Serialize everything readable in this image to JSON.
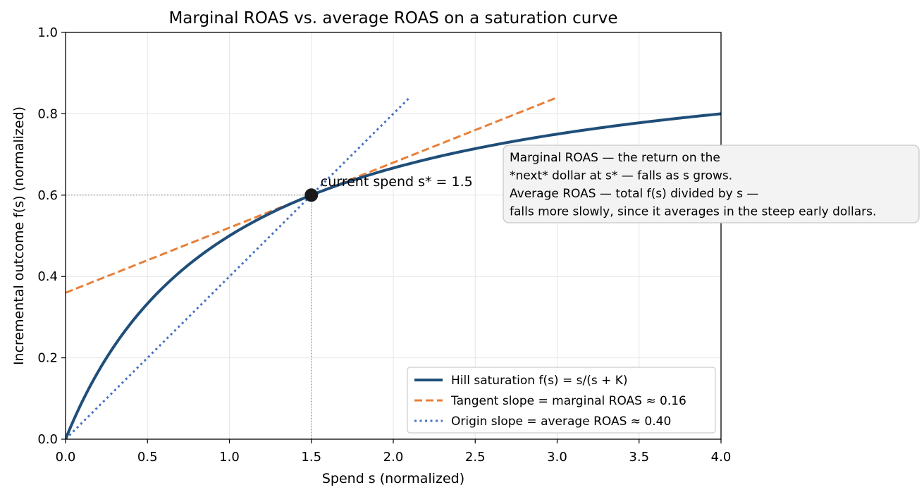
{
  "chart_data": {
    "type": "line",
    "title": "Marginal ROAS vs. average ROAS on a saturation curve",
    "xlabel": "Spend s (normalized)",
    "ylabel": "Incremental outcome f(s) (normalized)",
    "xlim": [
      0.0,
      4.0
    ],
    "ylim": [
      0.0,
      1.0
    ],
    "x_ticks": [
      "0.0",
      "0.5",
      "1.0",
      "1.5",
      "2.0",
      "2.5",
      "3.0",
      "3.5",
      "4.0"
    ],
    "y_ticks": [
      "0.0",
      "0.2",
      "0.4",
      "0.6",
      "0.8",
      "1.0"
    ],
    "grid": true,
    "legend_position": "lower-right",
    "series": [
      {
        "name": "Hill saturation f(s) = s/(s + K)",
        "style": "solid",
        "color": "#1f4e79",
        "K": 1.0,
        "x_range": [
          0.0,
          4.0
        ]
      },
      {
        "name": "Tangent slope = marginal ROAS ≈ 0.16",
        "style": "dashed",
        "color": "#e8803a",
        "x": [
          0.0,
          3.0
        ],
        "y": [
          0.36,
          0.84
        ]
      },
      {
        "name": "Origin slope = average ROAS ≈ 0.40",
        "style": "dotted",
        "color": "#4472c4",
        "x": [
          0.0,
          2.1
        ],
        "y": [
          0.0,
          0.84
        ]
      }
    ],
    "point": {
      "x": 1.5,
      "y": 0.6,
      "label": "current spend s* = 1.5"
    },
    "annotation": [
      "Marginal ROAS — the return on the",
      "*next* dollar at s* — falls as s grows.",
      "Average ROAS — total f(s) divided by s —",
      "falls more slowly, since it averages in the steep early dollars."
    ]
  }
}
